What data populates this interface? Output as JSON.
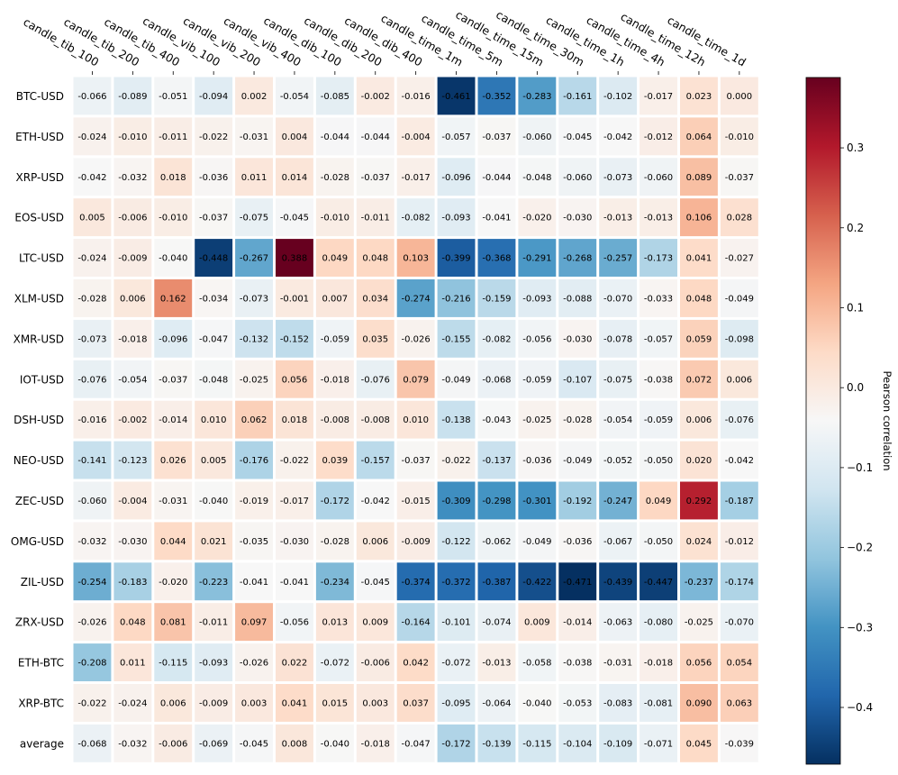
{
  "chart_data": {
    "type": "heatmap",
    "x": [
      "candle_tib_100",
      "candle_tib_200",
      "candle_tib_400",
      "candle_vib_100",
      "candle_vib_200",
      "candle_vib_400",
      "candle_dib_100",
      "candle_dib_200",
      "candle_dib_400",
      "candle_time_1m",
      "candle_time_5m",
      "candle_time_15m",
      "candle_time_30m",
      "candle_time_1h",
      "candle_time_4h",
      "candle_time_12h",
      "candle_time_1d"
    ],
    "y": [
      "BTC-USD",
      "ETH-USD",
      "XRP-USD",
      "EOS-USD",
      "LTC-USD",
      "XLM-USD",
      "XMR-USD",
      "IOT-USD",
      "DSH-USD",
      "NEO-USD",
      "ZEC-USD",
      "OMG-USD",
      "ZIL-USD",
      "ZRX-USD",
      "ETH-BTC",
      "XRP-BTC",
      "average"
    ],
    "values": [
      [
        -0.066,
        -0.089,
        -0.051,
        -0.094,
        0.002,
        -0.054,
        -0.085,
        -0.002,
        -0.016,
        -0.461,
        -0.352,
        -0.283,
        -0.161,
        -0.102,
        -0.017,
        0.023,
        0.0
      ],
      [
        -0.024,
        -0.01,
        -0.011,
        -0.022,
        -0.031,
        0.004,
        -0.044,
        -0.044,
        -0.004,
        -0.057,
        -0.037,
        -0.06,
        -0.045,
        -0.042,
        -0.012,
        0.064,
        -0.01
      ],
      [
        -0.042,
        -0.032,
        0.018,
        -0.036,
        0.011,
        0.014,
        -0.028,
        -0.037,
        -0.017,
        -0.096,
        -0.044,
        -0.048,
        -0.06,
        -0.073,
        -0.06,
        0.089,
        -0.037
      ],
      [
        0.005,
        -0.006,
        -0.01,
        -0.037,
        -0.075,
        -0.045,
        -0.01,
        -0.011,
        -0.082,
        -0.093,
        -0.041,
        -0.02,
        -0.03,
        -0.013,
        -0.013,
        0.106,
        0.028
      ],
      [
        -0.024,
        -0.009,
        -0.04,
        -0.448,
        -0.267,
        0.388,
        0.049,
        0.048,
        0.103,
        -0.399,
        -0.368,
        -0.291,
        -0.268,
        -0.257,
        -0.173,
        0.041,
        -0.027
      ],
      [
        -0.028,
        0.006,
        0.162,
        -0.034,
        -0.073,
        -0.001,
        0.007,
        0.034,
        -0.274,
        -0.216,
        -0.159,
        -0.093,
        -0.088,
        -0.07,
        -0.033,
        0.048,
        -0.049
      ],
      [
        -0.073,
        -0.018,
        -0.096,
        -0.047,
        -0.132,
        -0.152,
        -0.059,
        0.035,
        -0.026,
        -0.155,
        -0.082,
        -0.056,
        -0.03,
        -0.078,
        -0.057,
        0.059,
        -0.098
      ],
      [
        -0.076,
        -0.054,
        -0.037,
        -0.048,
        -0.025,
        0.056,
        -0.018,
        -0.076,
        0.079,
        -0.049,
        -0.068,
        -0.059,
        -0.107,
        -0.075,
        -0.038,
        0.072,
        0.006
      ],
      [
        -0.016,
        -0.002,
        -0.014,
        0.01,
        0.062,
        0.018,
        -0.008,
        -0.008,
        0.01,
        -0.138,
        -0.043,
        -0.025,
        -0.028,
        -0.054,
        -0.059,
        0.006,
        -0.076
      ],
      [
        -0.141,
        -0.123,
        0.026,
        0.005,
        -0.176,
        -0.022,
        0.039,
        -0.157,
        -0.037,
        -0.022,
        -0.137,
        -0.036,
        -0.049,
        -0.052,
        -0.05,
        0.02,
        -0.042
      ],
      [
        -0.06,
        -0.004,
        -0.031,
        -0.04,
        -0.019,
        -0.017,
        -0.172,
        -0.042,
        -0.015,
        -0.309,
        -0.298,
        -0.301,
        -0.192,
        -0.247,
        0.049,
        0.292,
        -0.187
      ],
      [
        -0.032,
        -0.03,
        0.044,
        0.021,
        -0.035,
        -0.03,
        -0.028,
        0.006,
        -0.009,
        -0.122,
        -0.062,
        -0.049,
        -0.036,
        -0.067,
        -0.05,
        0.024,
        -0.012
      ],
      [
        -0.254,
        -0.183,
        -0.02,
        -0.223,
        -0.041,
        -0.041,
        -0.234,
        -0.045,
        -0.374,
        -0.372,
        -0.387,
        -0.422,
        -0.471,
        -0.439,
        -0.447,
        -0.237,
        -0.174
      ],
      [
        -0.026,
        0.048,
        0.081,
        -0.011,
        0.097,
        -0.056,
        0.013,
        0.009,
        -0.164,
        -0.101,
        -0.074,
        0.009,
        -0.014,
        -0.063,
        -0.08,
        -0.025,
        -0.07
      ],
      [
        -0.208,
        0.011,
        -0.115,
        -0.093,
        -0.026,
        0.022,
        -0.072,
        -0.006,
        0.042,
        -0.072,
        -0.013,
        -0.058,
        -0.038,
        -0.031,
        -0.018,
        0.056,
        0.054
      ],
      [
        -0.022,
        -0.024,
        0.006,
        -0.009,
        0.003,
        0.041,
        0.015,
        0.003,
        0.037,
        -0.095,
        -0.064,
        -0.04,
        -0.053,
        -0.083,
        -0.081,
        0.09,
        0.063
      ],
      [
        -0.068,
        -0.032,
        -0.006,
        -0.069,
        -0.045,
        0.008,
        -0.04,
        -0.018,
        -0.047,
        -0.172,
        -0.139,
        -0.115,
        -0.104,
        -0.109,
        -0.071,
        0.045,
        -0.039
      ]
    ],
    "colorbar": {
      "label": "Pearson correlation",
      "range": [
        -0.471,
        0.388
      ],
      "ticks": [
        -0.4,
        -0.3,
        -0.2,
        -0.1,
        0.0,
        0.1,
        0.2,
        0.3
      ],
      "tick_labels": [
        "−0.4",
        "−0.3",
        "−0.2",
        "−0.1",
        "0.0",
        "0.1",
        "0.2",
        "0.3"
      ],
      "colormap": "RdBu_r"
    },
    "value_format": "3 decimals",
    "grid": false
  }
}
